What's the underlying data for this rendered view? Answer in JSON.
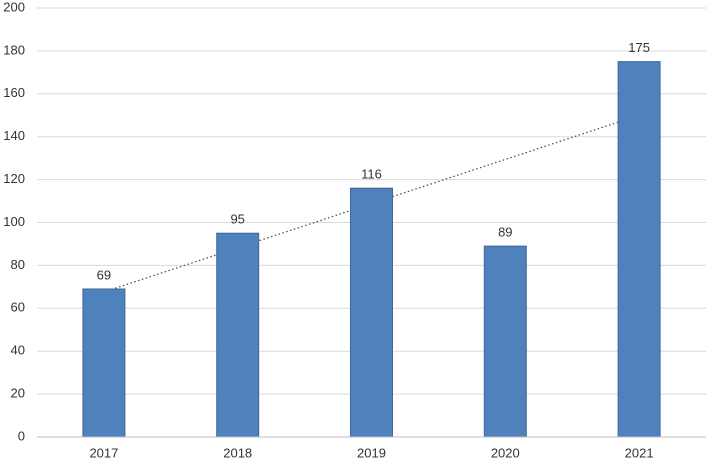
{
  "chart_data": {
    "type": "bar",
    "categories": [
      "2017",
      "2018",
      "2019",
      "2020",
      "2021"
    ],
    "values": [
      69,
      95,
      116,
      89,
      175
    ],
    "color": "#4f81bd",
    "ylim": [
      0,
      200
    ],
    "yticks": [
      0,
      20,
      40,
      60,
      80,
      100,
      120,
      140,
      160,
      180,
      200
    ],
    "grid": true,
    "data_labels": true,
    "trendline": "linear"
  }
}
